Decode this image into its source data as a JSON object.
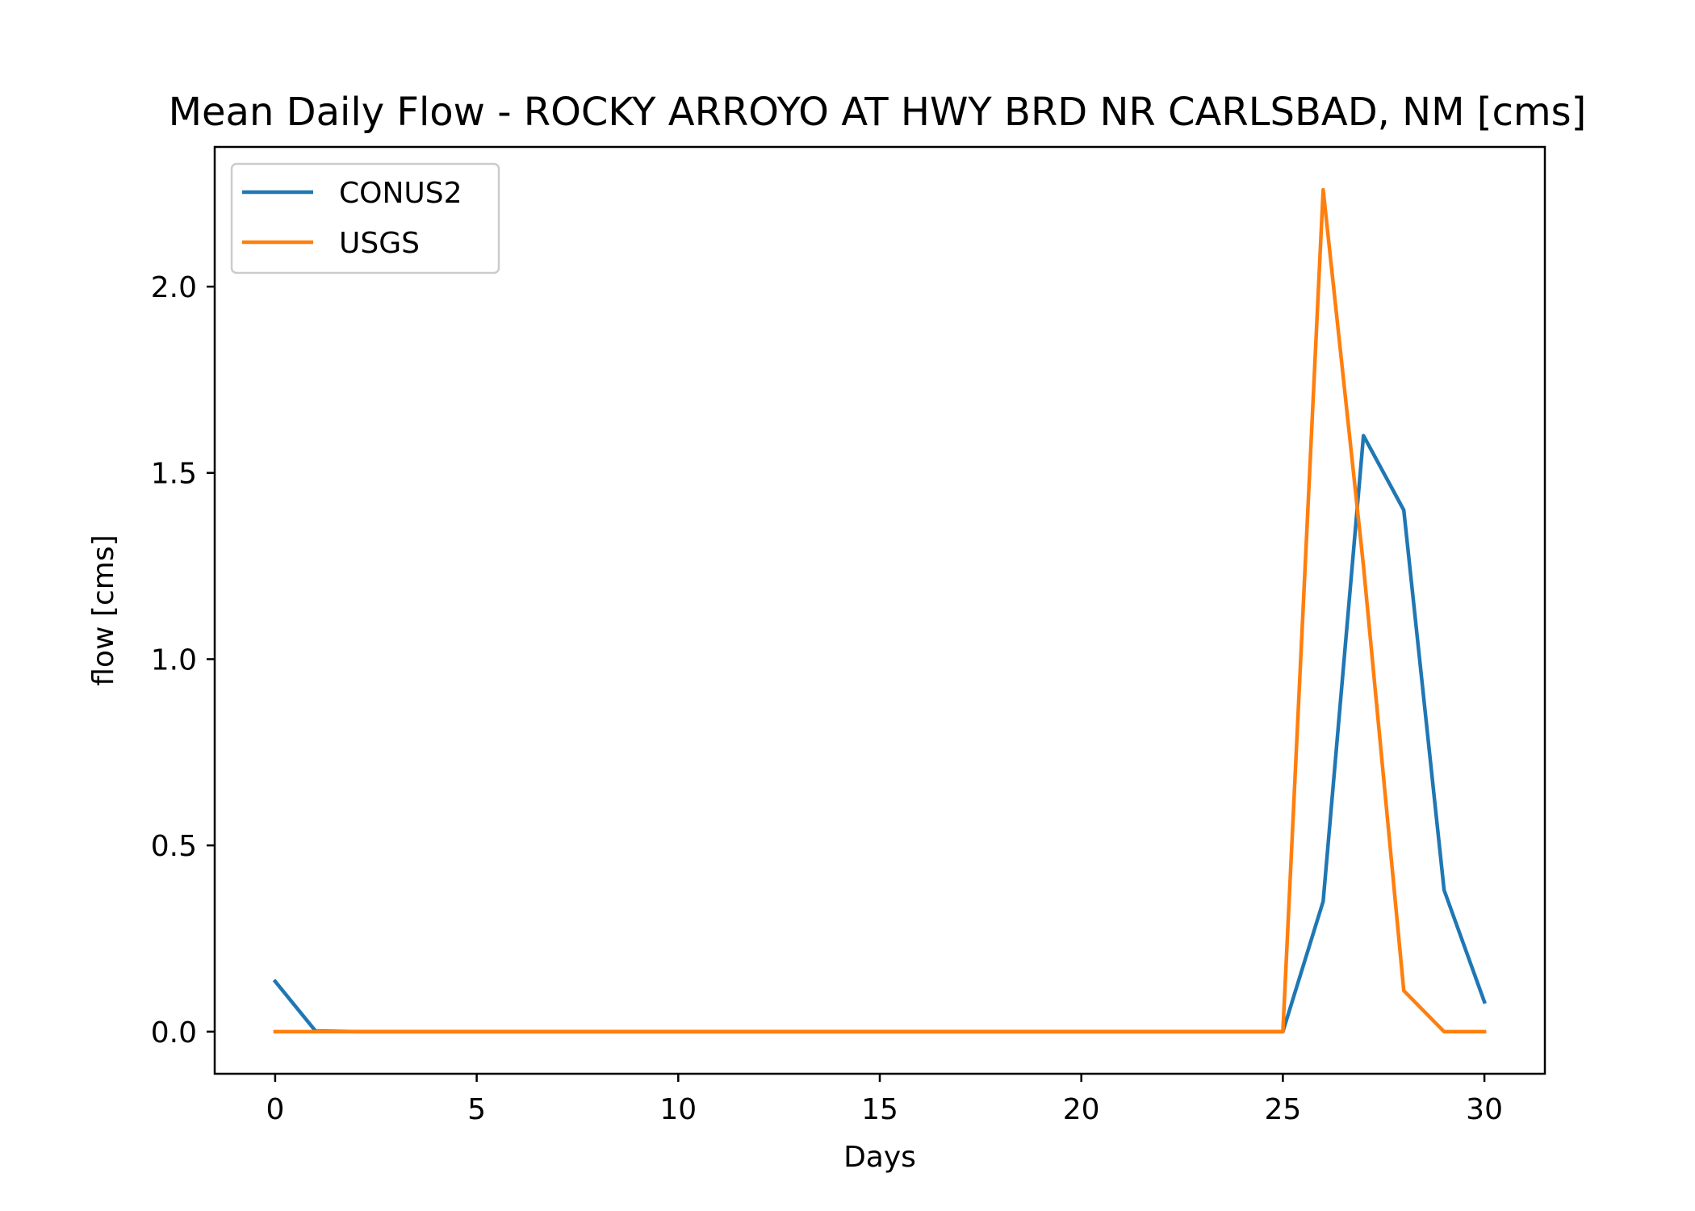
{
  "chart_data": {
    "type": "line",
    "title": "Mean Daily Flow - ROCKY ARROYO AT HWY BRD NR CARLSBAD, NM [cms]",
    "xlabel": "Days",
    "ylabel": "flow [cms]",
    "xlim": [
      -1.5,
      31.5
    ],
    "ylim": [
      -0.113,
      2.375
    ],
    "xticks": [
      0,
      5,
      10,
      15,
      20,
      25,
      30
    ],
    "xtick_labels": [
      "0",
      "5",
      "10",
      "15",
      "20",
      "25",
      "30"
    ],
    "yticks": [
      0.0,
      0.5,
      1.0,
      1.5,
      2.0
    ],
    "ytick_labels": [
      "0.0",
      "0.5",
      "1.0",
      "1.5",
      "2.0"
    ],
    "grid": false,
    "legend_position": "top-left",
    "x": [
      0,
      1,
      2,
      3,
      4,
      5,
      6,
      7,
      8,
      9,
      10,
      11,
      12,
      13,
      14,
      15,
      16,
      17,
      18,
      19,
      20,
      21,
      22,
      23,
      24,
      25,
      26,
      27,
      28,
      29,
      30
    ],
    "series": [
      {
        "name": "CONUS2",
        "color": "#1f77b4",
        "values": [
          0.135,
          0.002,
          0,
          0,
          0,
          0,
          0,
          0,
          0,
          0,
          0,
          0,
          0,
          0,
          0,
          0,
          0,
          0,
          0,
          0,
          0,
          0,
          0,
          0,
          0,
          0,
          0.35,
          1.6,
          1.4,
          0.38,
          0.08
        ]
      },
      {
        "name": "USGS",
        "color": "#ff7f0e",
        "values": [
          0,
          0,
          0,
          0,
          0,
          0,
          0,
          0,
          0,
          0,
          0,
          0,
          0,
          0,
          0,
          0,
          0,
          0,
          0,
          0,
          0,
          0,
          0,
          0,
          0,
          0,
          2.26,
          1.25,
          0.11,
          0,
          0
        ]
      }
    ]
  }
}
